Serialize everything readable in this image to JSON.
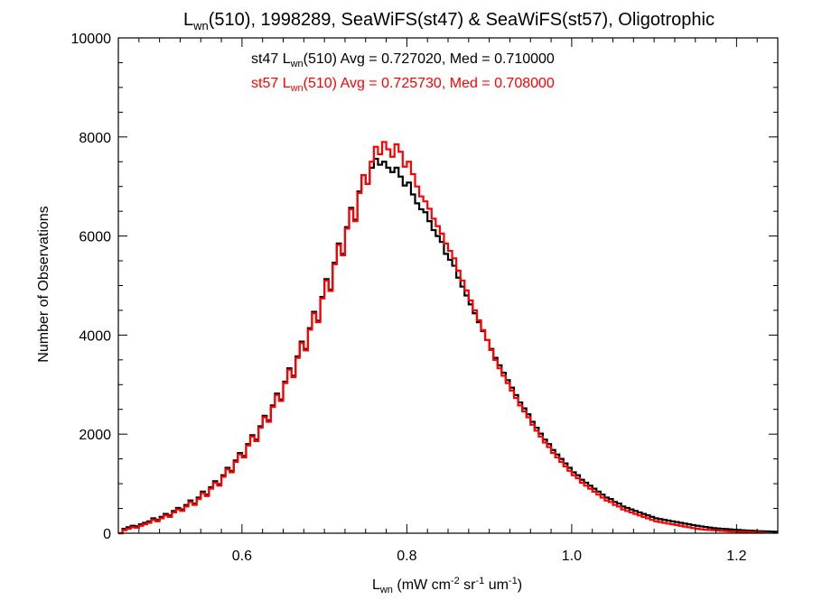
{
  "chart_data": {
    "type": "line",
    "style": "histogram-step",
    "title": {
      "pre": "L",
      "sub": "wn",
      "post": "(510), 1998289, SeaWiFS(st47) & SeaWiFS(st57), Oligotrophic"
    },
    "xlabel": {
      "p1": "L",
      "p1sub": "wn",
      "p2": " (mW cm",
      "p2sup": "-2",
      "p3": " sr",
      "p3sup": "-1",
      "p4": " um",
      "p4sup": "-1",
      "p5": ")"
    },
    "ylabel": "Number of Observations",
    "xlim": [
      0.45,
      1.25
    ],
    "ylim": [
      0,
      10000
    ],
    "xticks": [
      "0.6",
      "0.8",
      "1.0",
      "1.2"
    ],
    "yticks": [
      "0",
      "2000",
      "4000",
      "6000",
      "8000",
      "10000"
    ],
    "annotations": [
      {
        "pre": "st47 L",
        "sub": "wn",
        "post": "(510) Avg = 0.727020, Med = 0.710000",
        "color": "#000000"
      },
      {
        "pre": "st57 L",
        "sub": "wn",
        "post": "(510) Avg = 0.725730, Med = 0.708000",
        "color": "#ff0000"
      }
    ],
    "bin_width": 0.005,
    "bin_start": 0.45,
    "series": [
      {
        "color": "#000000",
        "values": [
          0,
          90,
          120,
          150,
          140,
          180,
          210,
          240,
          300,
          270,
          330,
          390,
          360,
          450,
          510,
          480,
          570,
          660,
          600,
          720,
          840,
          780,
          930,
          1050,
          990,
          1170,
          1320,
          1260,
          1470,
          1620,
          1560,
          1800,
          1980,
          1890,
          2160,
          2370,
          2280,
          2580,
          2820,
          2700,
          3060,
          3330,
          3180,
          3570,
          3870,
          3720,
          4140,
          4470,
          4290,
          4770,
          5130,
          4920,
          5460,
          5850,
          5640,
          6180,
          6570,
          6330,
          6900,
          7230,
          7050,
          7380,
          7560,
          7440,
          7500,
          7380,
          7290,
          7380,
          7200,
          7020,
          7080,
          6840,
          6660,
          6540,
          6480,
          6300,
          6120,
          6000,
          5880,
          5640,
          5520,
          5400,
          5160,
          4980,
          4800,
          4620,
          4440,
          4260,
          4080,
          3900,
          3720,
          3540,
          3390,
          3240,
          3090,
          2940,
          2790,
          2640,
          2520,
          2400,
          2250,
          2130,
          2010,
          1890,
          1800,
          1680,
          1590,
          1500,
          1410,
          1320,
          1230,
          1170,
          1080,
          1020,
          960,
          900,
          840,
          780,
          720,
          690,
          630,
          600,
          540,
          510,
          480,
          450,
          420,
          390,
          360,
          330,
          300,
          285,
          270,
          255,
          240,
          225,
          210,
          195,
          180,
          165,
          150,
          138,
          126,
          114,
          102,
          96,
          90,
          84,
          78,
          72,
          66,
          60,
          55,
          50,
          45,
          42,
          39,
          36,
          33,
          30
        ]
      },
      {
        "color": "#ff0000",
        "values": [
          0,
          60,
          90,
          120,
          110,
          150,
          180,
          210,
          270,
          240,
          300,
          360,
          330,
          420,
          480,
          450,
          540,
          630,
          570,
          690,
          810,
          750,
          900,
          1020,
          960,
          1140,
          1290,
          1230,
          1440,
          1590,
          1530,
          1770,
          1950,
          1860,
          2130,
          2340,
          2250,
          2550,
          2790,
          2670,
          3030,
          3300,
          3150,
          3540,
          3840,
          3690,
          4110,
          4440,
          4260,
          4740,
          5100,
          4890,
          5430,
          5820,
          5610,
          6150,
          6540,
          6300,
          6870,
          7230,
          7050,
          7500,
          7800,
          7650,
          7900,
          7750,
          7600,
          7850,
          7700,
          7400,
          7500,
          7250,
          7000,
          6800,
          6700,
          6550,
          6350,
          6200,
          6050,
          5850,
          5700,
          5550,
          5300,
          5100,
          4900,
          4700,
          4500,
          4300,
          4100,
          3900,
          3700,
          3500,
          3330,
          3180,
          3030,
          2880,
          2730,
          2580,
          2460,
          2340,
          2190,
          2070,
          1950,
          1830,
          1740,
          1620,
          1530,
          1440,
          1350,
          1260,
          1170,
          1110,
          1020,
          960,
          900,
          840,
          780,
          720,
          660,
          630,
          570,
          540,
          480,
          450,
          420,
          390,
          360,
          330,
          300,
          270,
          240,
          225,
          210,
          195,
          180,
          165,
          150,
          135,
          120,
          105,
          90,
          80,
          72,
          66,
          60,
          54,
          48,
          42,
          36,
          33,
          30,
          27,
          24,
          21,
          18,
          15,
          12
        ]
      }
    ]
  }
}
